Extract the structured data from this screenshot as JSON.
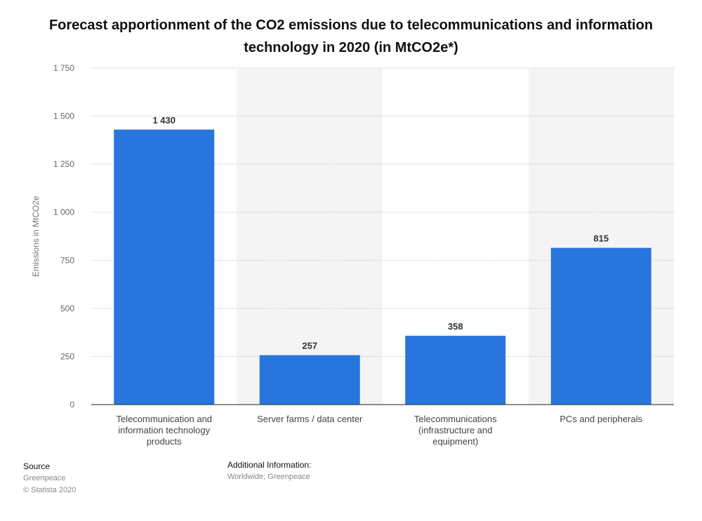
{
  "chart_data": {
    "type": "bar",
    "title": "Forecast apportionment of the CO2 emissions due to telecommunications and information technology in 2020 (in MtCO2e*)",
    "xlabel": "",
    "ylabel": "Emissions in MtCO2e",
    "ylim": [
      0,
      1750
    ],
    "yticks": [
      0,
      250,
      500,
      750,
      1000,
      1250,
      1500,
      1750
    ],
    "ytick_labels": [
      "0",
      "250",
      "500",
      "750",
      "1 000",
      "1 250",
      "1 500",
      "1 750"
    ],
    "categories": [
      "Telecommunication and information technology products",
      "Server farms / data center",
      "Telecommunications (infrastructure and equipment)",
      "PCs and peripherals"
    ],
    "category_lines": [
      [
        "Telecommunication and",
        "information technology",
        "products"
      ],
      [
        "Server farms / data center"
      ],
      [
        "Telecommunications",
        "(infrastructure and",
        "equipment)"
      ],
      [
        "PCs and peripherals"
      ]
    ],
    "values": [
      1430,
      257,
      358,
      815
    ],
    "value_labels": [
      "1 430",
      "257",
      "358",
      "815"
    ],
    "grid": true,
    "bar_color": "#2876dd",
    "band_color": "#f4f4f4"
  },
  "footer": {
    "source_heading": "Source",
    "source_text": "Greenpeace",
    "copyright": "© Statista 2020",
    "info_heading": "Additional Information:",
    "info_text": "Worldwide; Greenpeace"
  }
}
